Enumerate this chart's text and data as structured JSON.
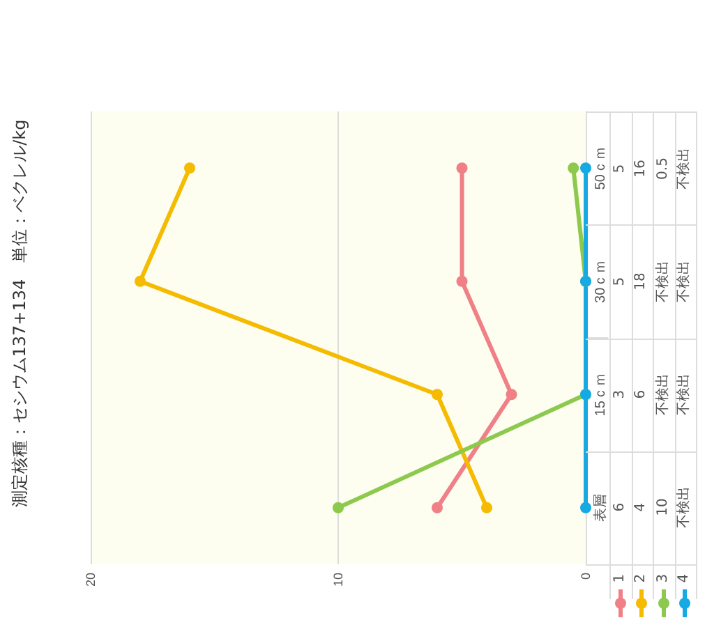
{
  "chart_data": {
    "type": "line",
    "orientation": "horizontal",
    "title": "測定核種：セシウム137+134　単位：ベクレル/kg",
    "categories": [
      "50ｃｍ",
      "30ｃｍ",
      "15ｃｍ",
      "表層"
    ],
    "series": [
      {
        "name": "1",
        "color": "#f07f86",
        "values": [
          5,
          5,
          3,
          6
        ],
        "value_labels": [
          "5",
          "5",
          "3",
          "6"
        ]
      },
      {
        "name": "2",
        "color": "#f5bb00",
        "values": [
          16,
          18,
          6,
          4
        ],
        "value_labels": [
          "16",
          "18",
          "6",
          "4"
        ]
      },
      {
        "name": "3",
        "color": "#8cc94c",
        "values": [
          0.5,
          0,
          0,
          10
        ],
        "value_labels": [
          "0.5",
          "不検出",
          "不検出",
          "10"
        ]
      },
      {
        "name": "4",
        "color": "#17a9e3",
        "values": [
          0,
          0,
          0,
          0
        ],
        "value_labels": [
          "不検出",
          "不検出",
          "不検出",
          "不検出"
        ]
      }
    ],
    "xlim": [
      20,
      0
    ],
    "xticks": [
      20,
      10,
      0
    ],
    "grid": "x",
    "legend": "bottom right",
    "marker": "circle"
  }
}
